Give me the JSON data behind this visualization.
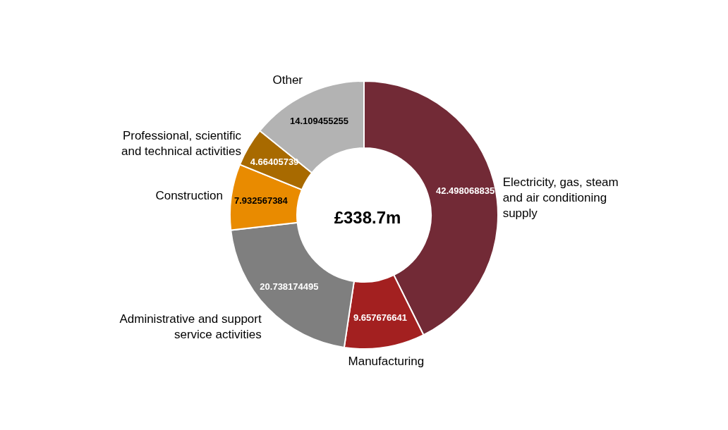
{
  "chart_data": {
    "type": "donut",
    "categories": [
      "Electricity, gas, steam and air conditioning supply",
      "Manufacturing",
      "Administrative and support service activities",
      "Construction",
      "Professional, scientific and technical activities",
      "Other"
    ],
    "values": [
      42.498068835,
      9.657676641,
      20.738174495,
      7.932567384,
      4.66405739,
      14.109455255
    ],
    "colors": [
      "#722a36",
      "#a32020",
      "#7f7f7f",
      "#e98b00",
      "#a86a00",
      "#b3b3b3"
    ],
    "data_labels": true,
    "legend": false,
    "annotations": [
      "£338.7m"
    ]
  }
}
